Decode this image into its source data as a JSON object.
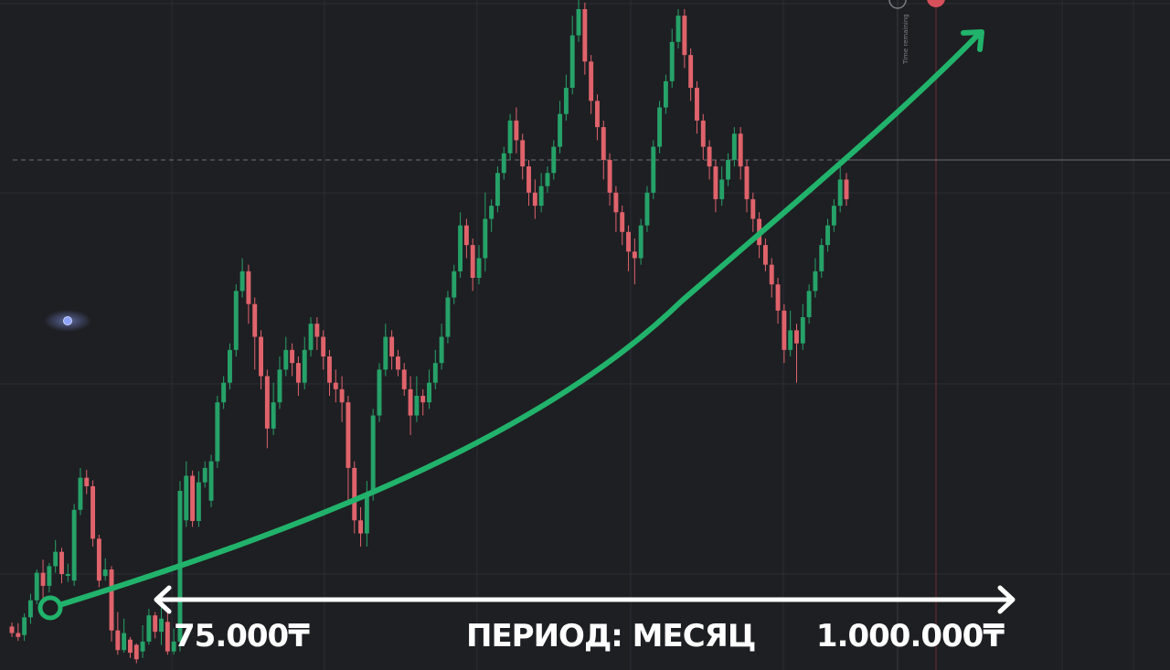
{
  "chart_data": {
    "type": "candlestick",
    "annotations": {
      "start_label": "75.000₸",
      "period_label": "ПЕРИОД: МЕСЯЦ",
      "end_label": "1.000.000₸",
      "time_remaining_label": "Time remaining"
    },
    "colors": {
      "background": "#1e1f23",
      "grid": "#2c2e34",
      "up": "#26a269",
      "down": "#e0636b",
      "trend_arrow": "#21b36b",
      "period_arrow": "#ffffff",
      "price_line": "#6d6f76",
      "now_line": "#7a3035",
      "dot": "#8ea2ff"
    },
    "grid": true,
    "candles": [
      [
        0.058,
        0.048,
        0.064,
        0.042
      ],
      [
        0.048,
        0.042,
        0.063,
        0.036
      ],
      [
        0.045,
        0.072,
        0.078,
        0.036
      ],
      [
        0.072,
        0.098,
        0.108,
        0.062
      ],
      [
        0.098,
        0.14,
        0.145,
        0.092
      ],
      [
        0.14,
        0.12,
        0.16,
        0.09
      ],
      [
        0.12,
        0.15,
        0.155,
        0.11
      ],
      [
        0.15,
        0.172,
        0.19,
        0.14
      ],
      [
        0.172,
        0.138,
        0.178,
        0.124
      ],
      [
        0.138,
        0.138,
        0.154,
        0.126
      ],
      [
        0.128,
        0.236,
        0.245,
        0.12
      ],
      [
        0.236,
        0.285,
        0.3,
        0.228
      ],
      [
        0.285,
        0.272,
        0.297,
        0.26
      ],
      [
        0.272,
        0.192,
        0.281,
        0.18
      ],
      [
        0.192,
        0.128,
        0.198,
        0.118
      ],
      [
        0.135,
        0.145,
        0.162,
        0.128
      ],
      [
        0.145,
        0.052,
        0.15,
        0.035
      ],
      [
        0.052,
        0.022,
        0.08,
        0.015
      ],
      [
        0.022,
        0.048,
        0.07,
        0.018
      ],
      [
        0.038,
        0.018,
        0.042,
        0.01
      ],
      [
        0.03,
        0.008,
        0.032,
        0.002
      ],
      [
        0.02,
        0.035,
        0.06,
        0.01
      ],
      [
        0.035,
        0.075,
        0.085,
        0.03
      ],
      [
        0.075,
        0.05,
        0.08,
        0.04
      ],
      [
        0.05,
        0.07,
        0.1,
        0.03
      ],
      [
        0.065,
        0.02,
        0.08,
        0.015
      ],
      [
        0.02,
        0.035,
        0.055,
        0.015
      ],
      [
        0.035,
        0.265,
        0.28,
        0.02
      ],
      [
        0.22,
        0.288,
        0.31,
        0.21
      ],
      [
        0.288,
        0.219,
        0.296,
        0.21
      ],
      [
        0.219,
        0.278,
        0.295,
        0.21
      ],
      [
        0.278,
        0.3,
        0.31,
        0.27
      ],
      [
        0.25,
        0.31,
        0.32,
        0.24
      ],
      [
        0.31,
        0.4,
        0.41,
        0.3
      ],
      [
        0.4,
        0.43,
        0.44,
        0.39
      ],
      [
        0.43,
        0.48,
        0.49,
        0.42
      ],
      [
        0.48,
        0.57,
        0.58,
        0.47
      ],
      [
        0.57,
        0.6,
        0.62,
        0.56
      ],
      [
        0.6,
        0.55,
        0.61,
        0.52
      ],
      [
        0.55,
        0.5,
        0.56,
        0.45
      ],
      [
        0.5,
        0.44,
        0.51,
        0.42
      ],
      [
        0.44,
        0.36,
        0.45,
        0.33
      ],
      [
        0.36,
        0.4,
        0.43,
        0.35
      ],
      [
        0.4,
        0.45,
        0.47,
        0.39
      ],
      [
        0.45,
        0.48,
        0.5,
        0.44
      ],
      [
        0.48,
        0.46,
        0.49,
        0.44
      ],
      [
        0.46,
        0.43,
        0.47,
        0.41
      ],
      [
        0.43,
        0.48,
        0.5,
        0.42
      ],
      [
        0.48,
        0.52,
        0.53,
        0.47
      ],
      [
        0.52,
        0.5,
        0.53,
        0.48
      ],
      [
        0.5,
        0.47,
        0.51,
        0.45
      ],
      [
        0.47,
        0.43,
        0.48,
        0.41
      ],
      [
        0.43,
        0.42,
        0.45,
        0.4
      ],
      [
        0.42,
        0.4,
        0.44,
        0.37
      ],
      [
        0.4,
        0.3,
        0.41,
        0.25
      ],
      [
        0.3,
        0.22,
        0.31,
        0.2
      ],
      [
        0.22,
        0.2,
        0.24,
        0.18
      ],
      [
        0.2,
        0.26,
        0.28,
        0.18
      ],
      [
        0.26,
        0.38,
        0.39,
        0.25
      ],
      [
        0.38,
        0.45,
        0.46,
        0.37
      ],
      [
        0.45,
        0.5,
        0.52,
        0.44
      ],
      [
        0.5,
        0.47,
        0.51,
        0.45
      ],
      [
        0.47,
        0.45,
        0.48,
        0.44
      ],
      [
        0.45,
        0.42,
        0.46,
        0.41
      ],
      [
        0.42,
        0.38,
        0.44,
        0.35
      ],
      [
        0.38,
        0.41,
        0.44,
        0.37
      ],
      [
        0.41,
        0.4,
        0.42,
        0.38
      ],
      [
        0.4,
        0.43,
        0.45,
        0.39
      ],
      [
        0.43,
        0.46,
        0.48,
        0.42
      ],
      [
        0.46,
        0.5,
        0.52,
        0.45
      ],
      [
        0.5,
        0.56,
        0.57,
        0.49
      ],
      [
        0.56,
        0.6,
        0.61,
        0.55
      ],
      [
        0.6,
        0.67,
        0.69,
        0.59
      ],
      [
        0.67,
        0.64,
        0.68,
        0.62
      ],
      [
        0.64,
        0.59,
        0.65,
        0.57
      ],
      [
        0.59,
        0.62,
        0.64,
        0.58
      ],
      [
        0.62,
        0.68,
        0.72,
        0.6
      ],
      [
        0.68,
        0.7,
        0.71,
        0.66
      ],
      [
        0.7,
        0.75,
        0.76,
        0.69
      ],
      [
        0.75,
        0.78,
        0.79,
        0.74
      ],
      [
        0.78,
        0.83,
        0.84,
        0.77
      ],
      [
        0.83,
        0.8,
        0.85,
        0.78
      ],
      [
        0.8,
        0.76,
        0.81,
        0.74
      ],
      [
        0.76,
        0.72,
        0.77,
        0.7
      ],
      [
        0.72,
        0.7,
        0.74,
        0.68
      ],
      [
        0.7,
        0.73,
        0.75,
        0.69
      ],
      [
        0.73,
        0.75,
        0.76,
        0.72
      ],
      [
        0.75,
        0.79,
        0.8,
        0.74
      ],
      [
        0.79,
        0.84,
        0.86,
        0.78
      ],
      [
        0.84,
        0.88,
        0.9,
        0.83
      ],
      [
        0.88,
        0.96,
        0.99,
        0.87
      ],
      [
        0.96,
        1.0,
        1.02,
        0.95
      ],
      [
        1.0,
        0.92,
        1.01,
        0.9
      ],
      [
        0.92,
        0.86,
        0.93,
        0.84
      ],
      [
        0.86,
        0.82,
        0.87,
        0.8
      ],
      [
        0.82,
        0.77,
        0.83,
        0.74
      ],
      [
        0.77,
        0.72,
        0.78,
        0.7
      ],
      [
        0.72,
        0.69,
        0.73,
        0.66
      ],
      [
        0.69,
        0.66,
        0.7,
        0.64
      ],
      [
        0.66,
        0.63,
        0.67,
        0.6
      ],
      [
        0.63,
        0.62,
        0.65,
        0.58
      ],
      [
        0.62,
        0.67,
        0.68,
        0.61
      ],
      [
        0.67,
        0.72,
        0.73,
        0.66
      ],
      [
        0.72,
        0.79,
        0.8,
        0.71
      ],
      [
        0.79,
        0.85,
        0.86,
        0.78
      ],
      [
        0.85,
        0.89,
        0.9,
        0.84
      ],
      [
        0.89,
        0.95,
        0.97,
        0.88
      ],
      [
        0.95,
        0.99,
        1.0,
        0.94
      ],
      [
        0.99,
        0.93,
        1.0,
        0.91
      ],
      [
        0.93,
        0.88,
        0.94,
        0.86
      ],
      [
        0.88,
        0.83,
        0.89,
        0.81
      ],
      [
        0.83,
        0.79,
        0.84,
        0.77
      ],
      [
        0.79,
        0.76,
        0.8,
        0.74
      ],
      [
        0.76,
        0.71,
        0.77,
        0.69
      ],
      [
        0.71,
        0.74,
        0.76,
        0.7
      ],
      [
        0.74,
        0.77,
        0.78,
        0.73
      ],
      [
        0.77,
        0.81,
        0.82,
        0.76
      ],
      [
        0.81,
        0.76,
        0.82,
        0.74
      ],
      [
        0.76,
        0.71,
        0.77,
        0.69
      ],
      [
        0.71,
        0.68,
        0.72,
        0.66
      ],
      [
        0.68,
        0.64,
        0.69,
        0.62
      ],
      [
        0.64,
        0.61,
        0.65,
        0.6
      ],
      [
        0.61,
        0.58,
        0.62,
        0.56
      ],
      [
        0.58,
        0.54,
        0.59,
        0.52
      ],
      [
        0.54,
        0.48,
        0.55,
        0.46
      ],
      [
        0.48,
        0.51,
        0.54,
        0.47
      ],
      [
        0.51,
        0.49,
        0.52,
        0.43
      ],
      [
        0.49,
        0.53,
        0.55,
        0.48
      ],
      [
        0.53,
        0.57,
        0.58,
        0.52
      ],
      [
        0.57,
        0.6,
        0.62,
        0.56
      ],
      [
        0.6,
        0.64,
        0.65,
        0.59
      ],
      [
        0.64,
        0.67,
        0.68,
        0.63
      ],
      [
        0.67,
        0.7,
        0.71,
        0.66
      ],
      [
        0.7,
        0.74,
        0.76,
        0.69
      ],
      [
        0.74,
        0.71,
        0.75,
        0.7
      ]
    ],
    "price_line": 0.72
  }
}
